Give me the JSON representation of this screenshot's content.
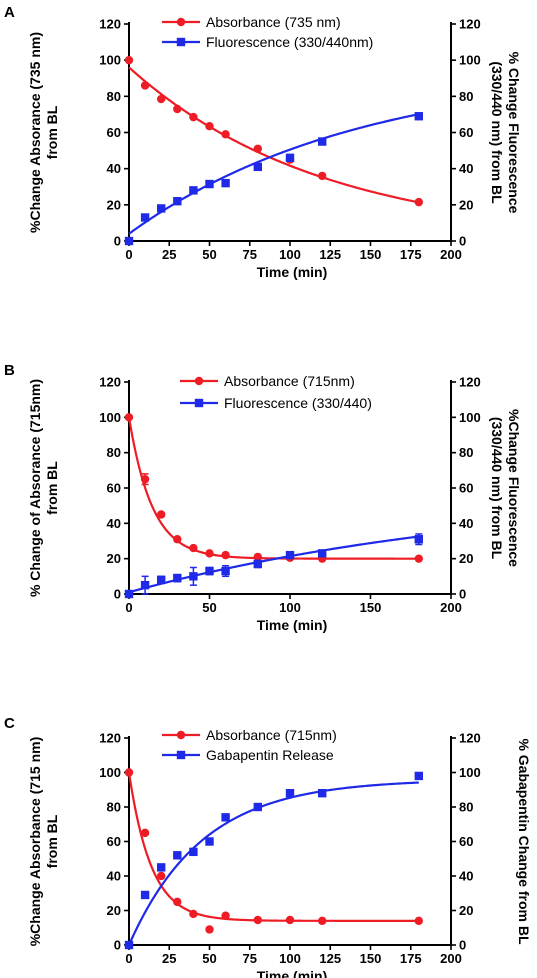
{
  "colors": {
    "red": "#ee1c25",
    "blue": "#1f2ae8",
    "axis": "#000000"
  },
  "chart_data": [
    {
      "type": "scatter",
      "panel_label": "A",
      "xlabel": "Time (min)",
      "ylabel_left": "%Change Absorance (735 nm)\nfrom BL",
      "ylabel_right": "% Change Fluorescence\n(330/440 nm) from BL",
      "xlim": [
        0,
        200
      ],
      "ylim_left": [
        0,
        120
      ],
      "ylim_right": [
        0,
        120
      ],
      "xticks": [
        "0",
        "25",
        "50",
        "75",
        "100",
        "125",
        "150",
        "175",
        "200"
      ],
      "yticks_left": [
        "0",
        "20",
        "40",
        "60",
        "80",
        "100",
        "120"
      ],
      "yticks_right": [
        "0",
        "20",
        "40",
        "60",
        "80",
        "100",
        "120"
      ],
      "legend_position": "top-center",
      "series": [
        {
          "name": "Absorbance (735 nm)",
          "axis": "left",
          "marker": "circle",
          "color": "#ee1c25",
          "x": [
            0,
            10,
            20,
            30,
            40,
            50,
            60,
            80,
            100,
            120,
            180
          ],
          "y": [
            100,
            86,
            78.5,
            73,
            68.5,
            63.5,
            59,
            51,
            45,
            36,
            21.5
          ],
          "err": [
            0,
            0,
            0,
            0,
            0,
            0,
            0,
            0,
            0,
            0,
            0
          ],
          "fit": {
            "model": "exp_decay",
            "y0": 96,
            "plateau": 0,
            "k": 0.00835
          }
        },
        {
          "name": "Fluorescence (330/440nm)",
          "axis": "right",
          "marker": "square",
          "color": "#1f2ae8",
          "x": [
            0,
            10,
            20,
            30,
            40,
            50,
            60,
            80,
            100,
            120,
            180
          ],
          "y": [
            0,
            13,
            18,
            22,
            28,
            31.5,
            32,
            41,
            46,
            55,
            69
          ],
          "err": [
            0,
            0,
            0,
            0,
            0,
            0,
            0,
            0,
            0,
            0,
            0
          ],
          "fit": {
            "model": "exp_assoc",
            "y0": 4,
            "plateau": 96,
            "k": 0.00705
          }
        }
      ]
    },
    {
      "type": "scatter",
      "panel_label": "B",
      "xlabel": "Time (min)",
      "ylabel_left": "% Change of Absorance (715nm)\nfrom BL",
      "ylabel_right": "%Change Fluorescence\n(330/440 nm) from BL",
      "xlim": [
        0,
        200
      ],
      "ylim_left": [
        0,
        120
      ],
      "ylim_right": [
        0,
        120
      ],
      "xticks": [
        "0",
        "50",
        "100",
        "150",
        "200"
      ],
      "yticks_left": [
        "0",
        "20",
        "40",
        "60",
        "80",
        "100",
        "120"
      ],
      "yticks_right": [
        "0",
        "20",
        "40",
        "60",
        "80",
        "100",
        "120"
      ],
      "legend_position": "top-center",
      "series": [
        {
          "name": "Absorbance (715nm)",
          "axis": "left",
          "marker": "circle",
          "color": "#ee1c25",
          "x": [
            0,
            10,
            20,
            30,
            40,
            50,
            60,
            80,
            100,
            120,
            180
          ],
          "y": [
            100,
            65,
            45,
            31,
            26,
            23,
            22,
            21,
            20.5,
            20,
            20
          ],
          "err": [
            0,
            3,
            1,
            0,
            0,
            0,
            0,
            0,
            0,
            0,
            0
          ],
          "fit": {
            "model": "exp_decay",
            "y0": 100,
            "plateau": 20,
            "k": 0.069
          }
        },
        {
          "name": "Fluorescence (330/440)",
          "axis": "right",
          "marker": "square",
          "color": "#1f2ae8",
          "x": [
            0,
            10,
            20,
            30,
            40,
            50,
            60,
            80,
            100,
            120,
            180
          ],
          "y": [
            0,
            5,
            8,
            9,
            10,
            13,
            13,
            17,
            22,
            23,
            31
          ],
          "err": [
            0,
            5,
            2,
            2,
            5,
            2,
            3,
            2,
            1,
            1,
            3
          ],
          "fit": {
            "model": "exp_assoc",
            "y0": 1,
            "plateau": 60,
            "k": 0.00425
          }
        }
      ]
    },
    {
      "type": "scatter",
      "panel_label": "C",
      "xlabel": "Time (min)",
      "ylabel_left": "%Change Absorbance (715 nm)\nfrom BL",
      "ylabel_right": "% Gabapentin Change from BL",
      "xlim": [
        0,
        200
      ],
      "ylim_left": [
        0,
        120
      ],
      "ylim_right": [
        0,
        120
      ],
      "xticks": [
        "0",
        "25",
        "50",
        "75",
        "100",
        "125",
        "150",
        "175",
        "200"
      ],
      "yticks_left": [
        "0",
        "20",
        "40",
        "60",
        "80",
        "100",
        "120"
      ],
      "yticks_right": [
        "0",
        "20",
        "40",
        "60",
        "80",
        "100",
        "120"
      ],
      "legend_position": "top-center",
      "series": [
        {
          "name": "Absorbance (715nm)",
          "axis": "left",
          "marker": "circle",
          "color": "#ee1c25",
          "x": [
            0,
            10,
            20,
            30,
            40,
            50,
            60,
            80,
            100,
            120,
            180
          ],
          "y": [
            100,
            65,
            40,
            25,
            18,
            9,
            17,
            14.5,
            14.5,
            14,
            14
          ],
          "err": [
            0,
            0,
            0,
            0,
            0,
            0,
            0,
            0,
            0,
            0,
            0
          ],
          "fit": {
            "model": "exp_decay",
            "y0": 100,
            "plateau": 14,
            "k": 0.072
          }
        },
        {
          "name": "Gabapentin Release",
          "axis": "right",
          "marker": "square",
          "color": "#1f2ae8",
          "x": [
            0,
            10,
            20,
            30,
            40,
            50,
            60,
            80,
            100,
            120,
            180
          ],
          "y": [
            0,
            29,
            45,
            52,
            54,
            60,
            74,
            80,
            88,
            88,
            98
          ],
          "err": [
            0,
            0,
            0,
            0,
            0,
            0,
            0,
            0,
            0,
            0,
            0
          ],
          "fit": {
            "model": "exp_assoc",
            "y0": 0,
            "plateau": 96,
            "k": 0.022
          }
        }
      ]
    }
  ]
}
